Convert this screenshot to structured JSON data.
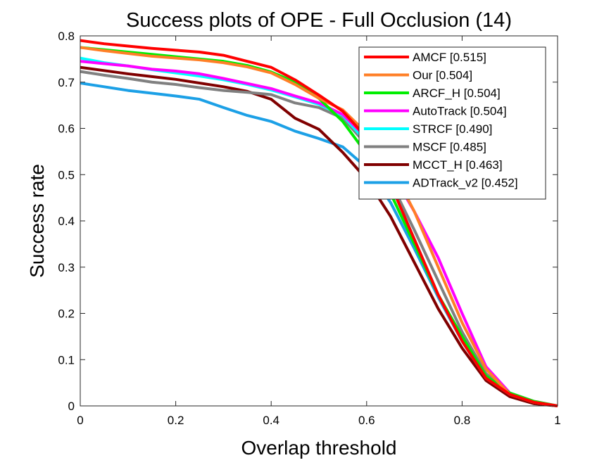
{
  "chart_data": {
    "type": "line",
    "title": "Success plots of OPE - Full Occlusion (14)",
    "xlabel": "Overlap threshold",
    "ylabel": "Success rate",
    "xlim": [
      0,
      1
    ],
    "ylim": [
      0,
      0.8
    ],
    "xticks": [
      0,
      0.2,
      0.4,
      0.6,
      0.8,
      1
    ],
    "xtick_labels": [
      "0",
      "0.2",
      "0.4",
      "0.6",
      "0.8",
      "1"
    ],
    "yticks": [
      0,
      0.1,
      0.2,
      0.3,
      0.4,
      0.5,
      0.6,
      0.7,
      0.8
    ],
    "ytick_labels": [
      "0",
      "0.1",
      "0.2",
      "0.3",
      "0.4",
      "0.5",
      "0.6",
      "0.7",
      "0.8"
    ],
    "grid": false,
    "legend_position": "top-right",
    "x": [
      0,
      0.05,
      0.1,
      0.15,
      0.2,
      0.25,
      0.3,
      0.35,
      0.4,
      0.45,
      0.5,
      0.55,
      0.6,
      0.65,
      0.7,
      0.75,
      0.8,
      0.85,
      0.9,
      0.95,
      1.0
    ],
    "series": [
      {
        "name": "AMCF [0.515]",
        "color": "#ff0000",
        "values": [
          0.79,
          0.783,
          0.778,
          0.773,
          0.769,
          0.765,
          0.758,
          0.745,
          0.732,
          0.705,
          0.672,
          0.637,
          0.58,
          0.48,
          0.36,
          0.24,
          0.14,
          0.06,
          0.025,
          0.008,
          0.0
        ]
      },
      {
        "name": "Our [0.504]",
        "color": "#ff7f27",
        "values": [
          0.775,
          0.768,
          0.762,
          0.756,
          0.752,
          0.748,
          0.742,
          0.733,
          0.72,
          0.695,
          0.665,
          0.64,
          0.59,
          0.52,
          0.42,
          0.3,
          0.18,
          0.08,
          0.025,
          0.008,
          0.0
        ]
      },
      {
        "name": "ARCF_H [0.504]",
        "color": "#00ee00",
        "values": [
          0.775,
          0.77,
          0.765,
          0.76,
          0.755,
          0.75,
          0.745,
          0.736,
          0.722,
          0.7,
          0.665,
          0.615,
          0.545,
          0.46,
          0.35,
          0.24,
          0.15,
          0.065,
          0.028,
          0.01,
          0.0
        ]
      },
      {
        "name": "AutoTrack [0.504]",
        "color": "#ff00ff",
        "values": [
          0.745,
          0.74,
          0.735,
          0.728,
          0.724,
          0.718,
          0.708,
          0.697,
          0.686,
          0.67,
          0.655,
          0.63,
          0.58,
          0.51,
          0.42,
          0.32,
          0.2,
          0.085,
          0.028,
          0.01,
          0.0
        ]
      },
      {
        "name": "STRCF [0.490]",
        "color": "#00ffff",
        "values": [
          0.752,
          0.742,
          0.735,
          0.727,
          0.72,
          0.713,
          0.705,
          0.695,
          0.683,
          0.668,
          0.652,
          0.628,
          0.57,
          0.48,
          0.36,
          0.24,
          0.14,
          0.06,
          0.025,
          0.008,
          0.0
        ]
      },
      {
        "name": "MSCF [0.485]",
        "color": "#808080",
        "values": [
          0.723,
          0.715,
          0.708,
          0.7,
          0.695,
          0.688,
          0.682,
          0.678,
          0.673,
          0.655,
          0.645,
          0.622,
          0.565,
          0.485,
          0.38,
          0.27,
          0.16,
          0.07,
          0.026,
          0.008,
          0.0
        ]
      },
      {
        "name": "MCCT_H [0.463]",
        "color": "#800000",
        "values": [
          0.732,
          0.725,
          0.718,
          0.712,
          0.706,
          0.698,
          0.69,
          0.68,
          0.663,
          0.622,
          0.598,
          0.548,
          0.49,
          0.41,
          0.31,
          0.21,
          0.125,
          0.055,
          0.02,
          0.005,
          0.0
        ]
      },
      {
        "name": "ADTrack_v2 [0.452]",
        "color": "#1ca0e6",
        "values": [
          0.698,
          0.69,
          0.682,
          0.676,
          0.67,
          0.663,
          0.645,
          0.628,
          0.615,
          0.594,
          0.578,
          0.56,
          0.515,
          0.44,
          0.34,
          0.235,
          0.14,
          0.06,
          0.022,
          0.006,
          0.0
        ]
      }
    ]
  }
}
